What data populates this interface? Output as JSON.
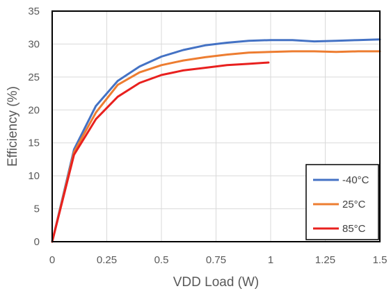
{
  "chart_data": {
    "type": "line",
    "title": "",
    "xlabel": "VDD Load (W)",
    "ylabel": "Efficiency (%)",
    "xlim": [
      0,
      1.5
    ],
    "ylim": [
      0,
      35
    ],
    "xticks": [
      "0",
      "0.25",
      "0.5",
      "0.75",
      "1",
      "1.25",
      "1.5"
    ],
    "yticks": [
      "0",
      "5",
      "10",
      "15",
      "20",
      "25",
      "30",
      "35"
    ],
    "grid": true,
    "legend_position": "bottom-right",
    "series": [
      {
        "name": "-40°C",
        "color": "#4472C4",
        "x": [
          0,
          0.1,
          0.2,
          0.3,
          0.4,
          0.5,
          0.6,
          0.7,
          0.8,
          0.9,
          1.0,
          1.1,
          1.2,
          1.3,
          1.4,
          1.5
        ],
        "y": [
          0,
          14.0,
          20.6,
          24.4,
          26.6,
          28.1,
          29.1,
          29.8,
          30.2,
          30.5,
          30.6,
          30.6,
          30.4,
          30.5,
          30.6,
          30.7
        ]
      },
      {
        "name": "25°C",
        "color": "#ED7D31",
        "x": [
          0,
          0.1,
          0.2,
          0.3,
          0.4,
          0.5,
          0.6,
          0.7,
          0.8,
          0.9,
          1.0,
          1.1,
          1.2,
          1.3,
          1.4,
          1.5
        ],
        "y": [
          0,
          13.6,
          19.6,
          23.8,
          25.7,
          26.8,
          27.5,
          28.0,
          28.4,
          28.7,
          28.8,
          28.9,
          28.9,
          28.8,
          28.9,
          28.9
        ]
      },
      {
        "name": "85°C",
        "color": "#E8201E",
        "x": [
          0,
          0.1,
          0.2,
          0.3,
          0.4,
          0.5,
          0.6,
          0.7,
          0.8,
          0.9,
          0.99
        ],
        "y": [
          0,
          13.2,
          18.6,
          22.0,
          24.1,
          25.3,
          26.0,
          26.4,
          26.8,
          27.0,
          27.2
        ]
      }
    ]
  }
}
